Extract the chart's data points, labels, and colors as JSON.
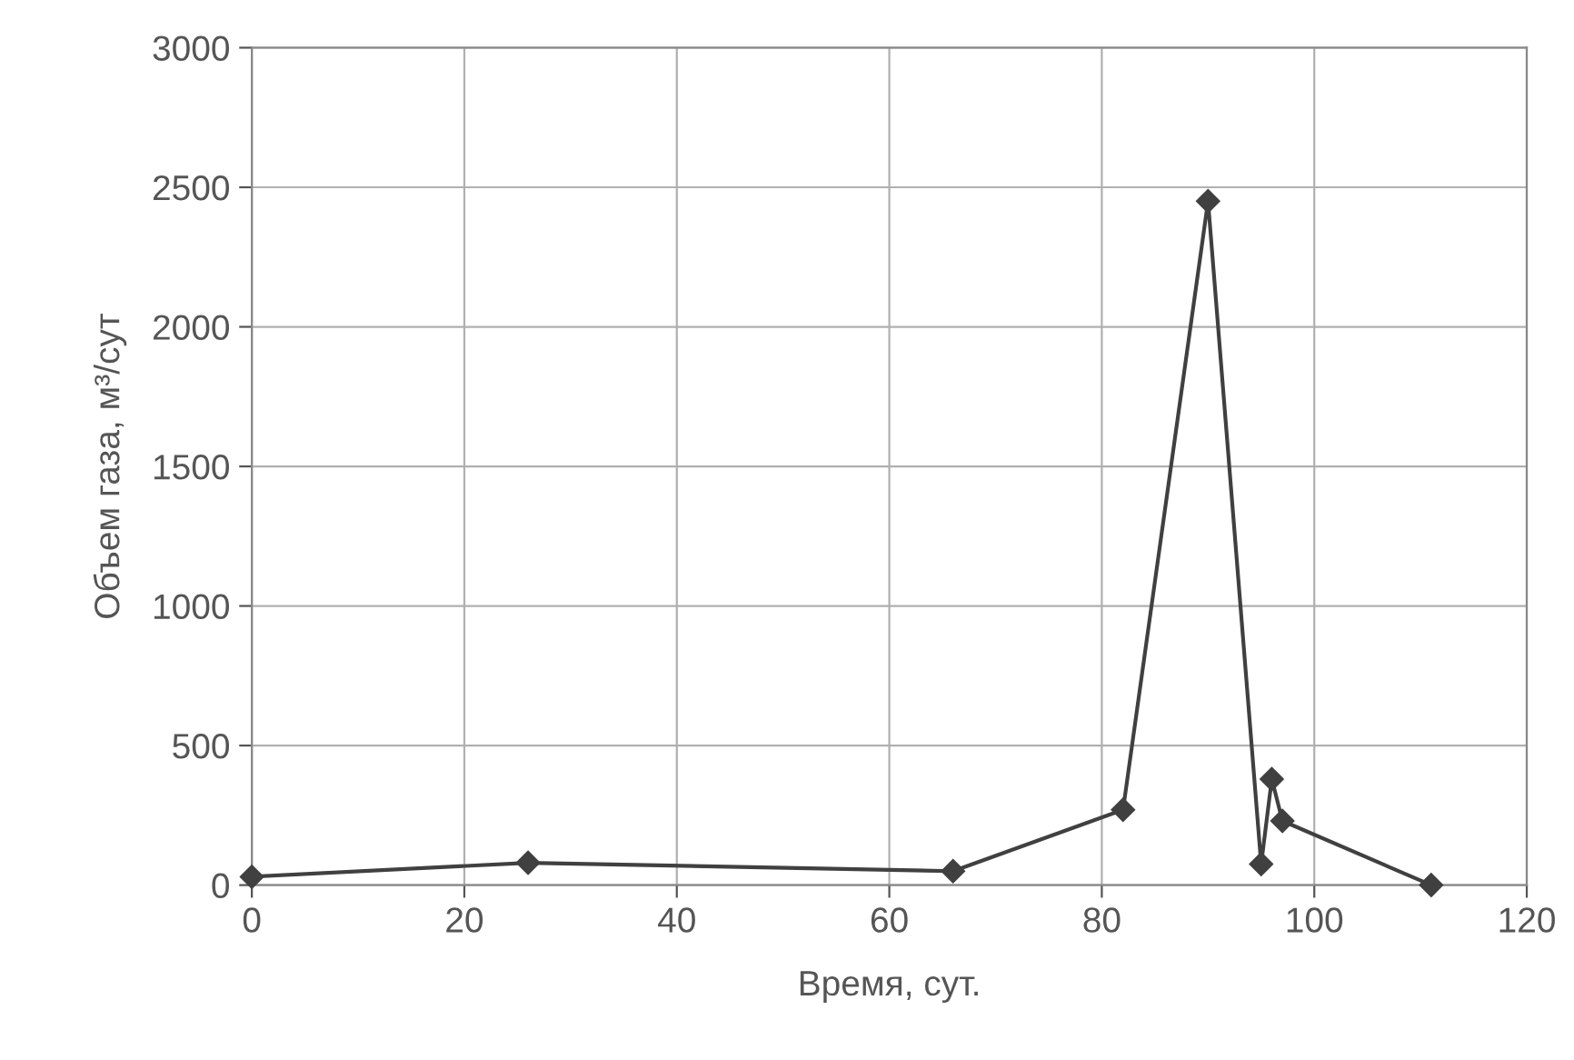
{
  "chart_data": {
    "type": "line",
    "xlabel": "Время, сут.",
    "ylabel": "Объем газа, м³/сут",
    "x": [
      0,
      26,
      66,
      82,
      90,
      95,
      96,
      97,
      111
    ],
    "series": [
      {
        "color": "#404040",
        "values": [
          30,
          80,
          50,
          270,
          2450,
          75,
          380,
          230,
          0
        ]
      }
    ],
    "xlim": [
      0,
      120
    ],
    "xticks": [
      0,
      20,
      40,
      60,
      80,
      100,
      120
    ],
    "ylim": [
      0,
      3000
    ],
    "yticks": [
      0,
      500,
      1000,
      1500,
      2000,
      2500,
      3000
    ],
    "grid": true,
    "marker": "diamond",
    "line_style": "solid"
  }
}
